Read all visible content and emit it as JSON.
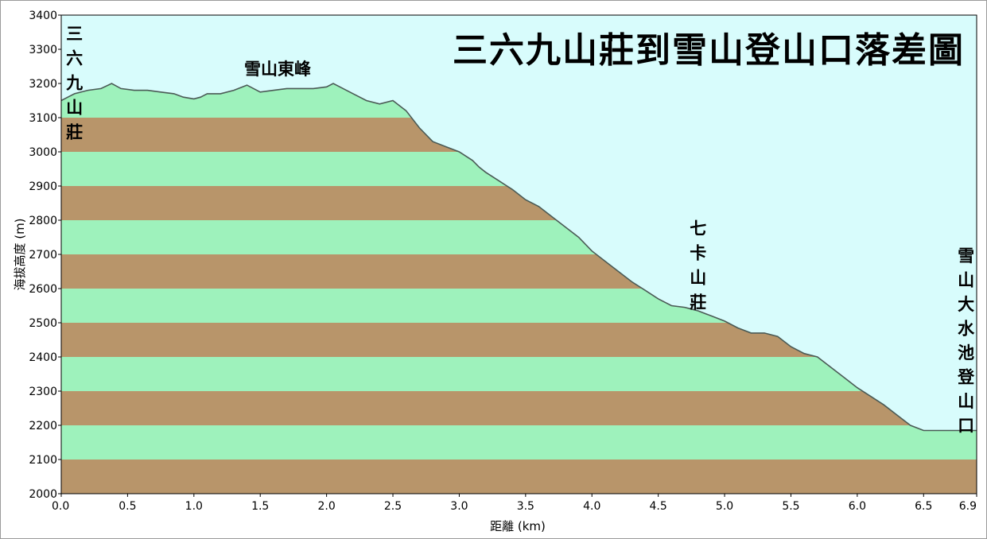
{
  "chart_data": {
    "type": "area",
    "title": "三六九山莊到雪山登山口落差圖",
    "xlabel": "距離  (km)",
    "ylabel": "海拔高度 (m)",
    "xlim": [
      0,
      6.9
    ],
    "ylim": [
      2000,
      3400
    ],
    "x_ticks": [
      "0.0",
      "0.5",
      "1.0",
      "1.5",
      "2.0",
      "2.5",
      "3.0",
      "3.5",
      "4.0",
      "4.5",
      "5.0",
      "5.5",
      "6.0",
      "6.5",
      "6.9"
    ],
    "x_tick_values": [
      0,
      0.5,
      1.0,
      1.5,
      2.0,
      2.5,
      3.0,
      3.5,
      4.0,
      4.5,
      5.0,
      5.5,
      6.0,
      6.5,
      6.9
    ],
    "y_ticks": [
      "2000",
      "2100",
      "2200",
      "2300",
      "2400",
      "2500",
      "2600",
      "2700",
      "2800",
      "2900",
      "3000",
      "3100",
      "3200",
      "3300",
      "3400"
    ],
    "y_tick_values": [
      2000,
      2100,
      2200,
      2300,
      2400,
      2500,
      2600,
      2700,
      2800,
      2900,
      3000,
      3100,
      3200,
      3300,
      3400
    ],
    "colors": {
      "sky": "#d8fcfc",
      "band_green": "#9ef2bc",
      "band_brown": "#b8956a",
      "line": "#4a5a55"
    },
    "annotations": [
      {
        "text": "三六九山莊",
        "vertical": true,
        "x": 0.1,
        "y": 3380
      },
      {
        "text": "雪山東峰",
        "vertical": false,
        "x": 2.05,
        "y": 3230
      },
      {
        "text": "七卡山莊",
        "vertical": true,
        "x": 4.8,
        "y": 2810
      },
      {
        "text": "雪山大水池登山口",
        "vertical": true,
        "x": 6.82,
        "y": 2730
      }
    ],
    "series": [
      {
        "x": [
          0,
          0.05,
          0.1,
          0.2,
          0.3,
          0.38,
          0.45,
          0.55,
          0.65,
          0.75,
          0.85,
          0.92,
          1.0,
          1.05,
          1.1,
          1.2,
          1.3,
          1.4,
          1.5,
          1.6,
          1.7,
          1.8,
          1.9,
          2.0,
          2.05,
          2.1,
          2.2,
          2.3,
          2.4,
          2.5,
          2.6,
          2.7,
          2.8,
          2.9,
          3.0,
          3.1,
          3.15,
          3.2,
          3.3,
          3.4,
          3.5,
          3.6,
          3.7,
          3.8,
          3.9,
          4.0,
          4.1,
          4.2,
          4.3,
          4.4,
          4.5,
          4.6,
          4.7,
          4.75,
          4.8,
          4.9,
          5.0,
          5.1,
          5.2,
          5.3,
          5.4,
          5.5,
          5.6,
          5.7,
          5.8,
          5.9,
          6.0,
          6.1,
          6.2,
          6.3,
          6.4,
          6.5,
          6.6,
          6.65,
          6.7,
          6.8,
          6.9
        ],
        "y": [
          3150,
          3160,
          3170,
          3180,
          3185,
          3200,
          3185,
          3180,
          3180,
          3175,
          3170,
          3160,
          3155,
          3160,
          3170,
          3170,
          3180,
          3195,
          3175,
          3180,
          3185,
          3185,
          3185,
          3190,
          3200,
          3190,
          3170,
          3150,
          3140,
          3150,
          3120,
          3070,
          3030,
          3015,
          3000,
          2975,
          2955,
          2940,
          2915,
          2890,
          2860,
          2840,
          2810,
          2780,
          2750,
          2710,
          2680,
          2650,
          2620,
          2595,
          2570,
          2550,
          2545,
          2540,
          2535,
          2520,
          2505,
          2485,
          2470,
          2470,
          2460,
          2430,
          2410,
          2400,
          2370,
          2340,
          2310,
          2285,
          2260,
          2230,
          2200,
          2185,
          2185,
          2185,
          2185,
          2185,
          2185
        ]
      }
    ]
  }
}
